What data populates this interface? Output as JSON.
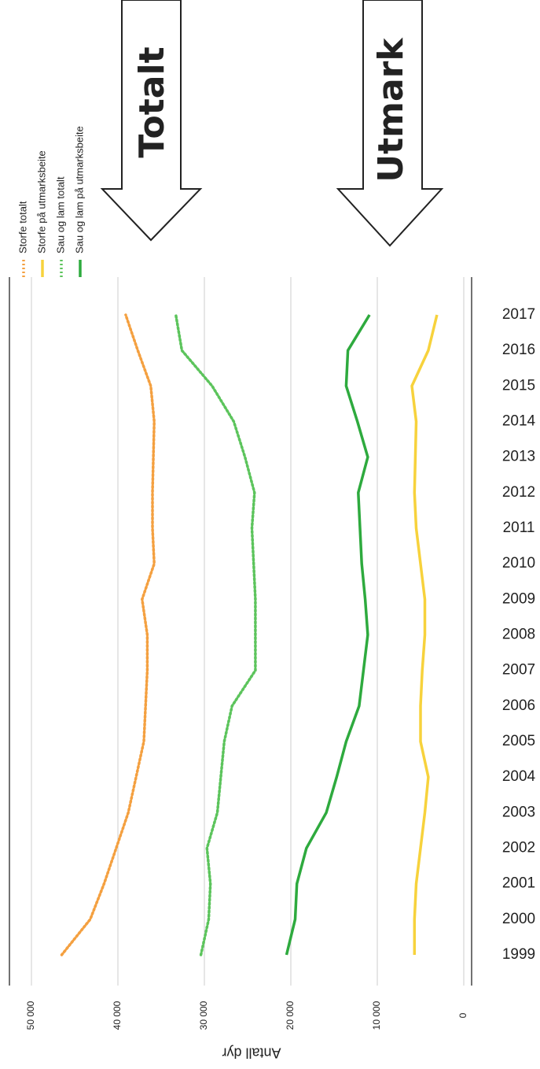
{
  "chart_data": {
    "type": "line",
    "ylabel": "Antall dyr",
    "annotations": [
      "Totalt",
      "Utmark"
    ],
    "categories": [
      "1999",
      "2000",
      "2001",
      "2002",
      "2003",
      "2004",
      "2005",
      "2006",
      "2007",
      "2008",
      "2009",
      "2010",
      "2011",
      "2012",
      "2013",
      "2014",
      "2015",
      "2016",
      "2017"
    ],
    "series": [
      {
        "name": "Storfe totalt",
        "color": "#f4a040",
        "line_style": "dotted",
        "values": [
          46500,
          43200,
          41600,
          40200,
          38800,
          37900,
          37000,
          36800,
          36600,
          36600,
          37200,
          35800,
          36000,
          36000,
          35900,
          35800,
          36200,
          37700,
          39100
        ]
      },
      {
        "name": "Storfe på utmarksbeite",
        "color": "#f7d23c",
        "line_style": "solid",
        "values": [
          5700,
          5700,
          5500,
          5000,
          4500,
          4100,
          5000,
          5000,
          4800,
          4500,
          4500,
          5000,
          5500,
          5700,
          5600,
          5500,
          6000,
          4100,
          3100
        ]
      },
      {
        "name": "Sau og lam totalt",
        "color": "#5cc45c",
        "line_style": "dotted",
        "values": [
          30400,
          29500,
          29300,
          29700,
          28500,
          28100,
          27700,
          26800,
          24100,
          24100,
          24100,
          24300,
          24500,
          24200,
          25300,
          26600,
          29100,
          32600,
          33300
        ]
      },
      {
        "name": "Sau og lam på utmarksbeite",
        "color": "#2eaa3e",
        "line_style": "solid",
        "values": [
          20500,
          19500,
          19300,
          18200,
          15900,
          14700,
          13600,
          12100,
          11600,
          11100,
          11400,
          11800,
          12000,
          12200,
          11100,
          12300,
          13600,
          13400,
          10900
        ]
      }
    ],
    "ylim": [
      0,
      50000
    ],
    "yticks": [
      {
        "value": 50000,
        "label": "50 000"
      },
      {
        "value": 40000,
        "label": "40 000"
      },
      {
        "value": 30000,
        "label": "30 000"
      },
      {
        "value": 20000,
        "label": "20 000"
      },
      {
        "value": 10000,
        "label": "10 000"
      },
      0
    ],
    "grid": true
  }
}
